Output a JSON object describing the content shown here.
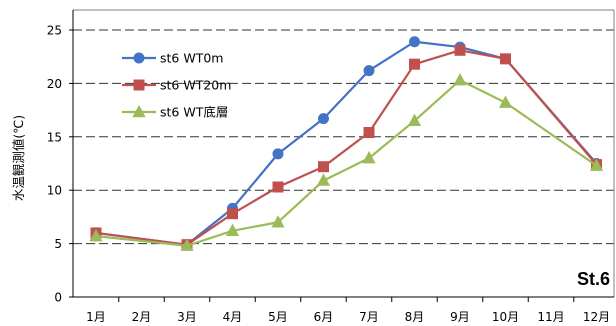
{
  "chart_data": {
    "type": "line",
    "x": [
      "1月",
      "2月",
      "3月",
      "4月",
      "5月",
      "6月",
      "7月",
      "8月",
      "9月",
      "10月",
      "11月",
      "12月"
    ],
    "ylabel": "水温観測値(℃)",
    "ylim": [
      0,
      25
    ],
    "yticks": [
      0,
      5,
      10,
      15,
      20,
      25
    ],
    "grid": "horizontal-dashed",
    "legend": "top-left",
    "annotation": "St.6",
    "series": [
      {
        "name": "st6 WT0m",
        "color": "#4472C4",
        "marker": "circle",
        "values": [
          6.0,
          null,
          4.9,
          8.3,
          13.4,
          16.7,
          21.2,
          23.9,
          23.4,
          22.3,
          null,
          12.5
        ]
      },
      {
        "name": "st6 WT20m",
        "color": "#C0504D",
        "marker": "square",
        "values": [
          6.0,
          null,
          4.9,
          7.8,
          10.3,
          12.2,
          15.4,
          21.8,
          23.1,
          22.3,
          null,
          12.4
        ]
      },
      {
        "name": "st6 WT底層",
        "color": "#9BBB59",
        "marker": "triangle",
        "values": [
          5.7,
          null,
          4.8,
          6.2,
          7.0,
          10.9,
          13.0,
          16.5,
          20.3,
          18.2,
          null,
          12.3
        ]
      }
    ]
  }
}
